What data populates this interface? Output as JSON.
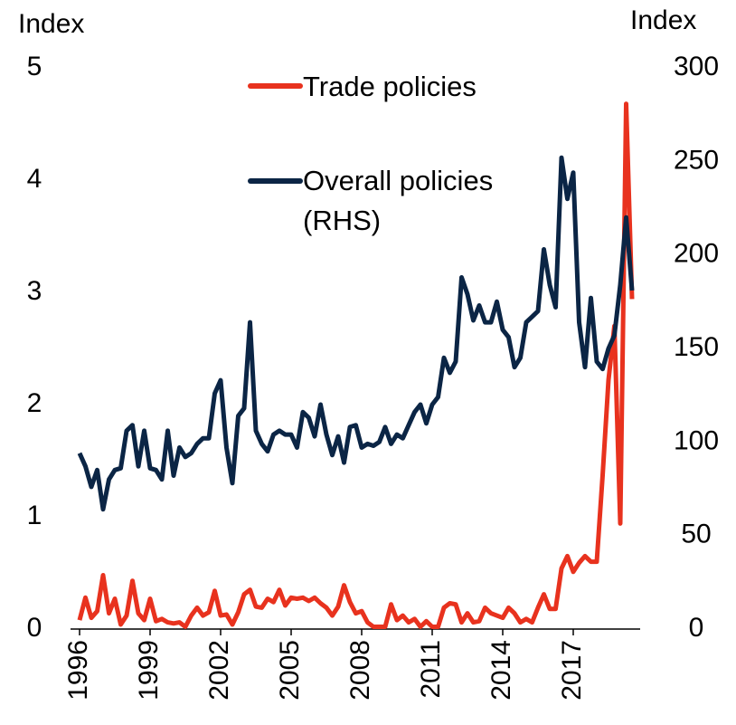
{
  "chart_data": {
    "type": "line",
    "y_label": "Index",
    "y2_label": "Index",
    "x": [
      1996,
      1996.25,
      1996.5,
      1996.75,
      1997,
      1997.25,
      1997.5,
      1997.75,
      1998,
      1998.25,
      1998.5,
      1998.75,
      1999,
      1999.25,
      1999.5,
      1999.75,
      2000,
      2000.25,
      2000.5,
      2000.75,
      2001,
      2001.25,
      2001.5,
      2001.75,
      2002,
      2002.25,
      2002.5,
      2002.75,
      2003,
      2003.25,
      2003.5,
      2003.75,
      2004,
      2004.25,
      2004.5,
      2004.75,
      2005,
      2005.25,
      2005.5,
      2005.75,
      2006,
      2006.25,
      2006.5,
      2006.75,
      2007,
      2007.25,
      2007.5,
      2007.75,
      2008,
      2008.25,
      2008.5,
      2008.75,
      2009,
      2009.25,
      2009.5,
      2009.75,
      2010,
      2010.25,
      2010.5,
      2010.75,
      2011,
      2011.25,
      2011.5,
      2011.75,
      2012,
      2012.25,
      2012.5,
      2012.75,
      2013,
      2013.25,
      2013.5,
      2013.75,
      2014,
      2014.25,
      2014.5,
      2014.75,
      2015,
      2015.25,
      2015.5,
      2015.75,
      2016,
      2016.25,
      2016.5,
      2016.75,
      2017,
      2017.25,
      2017.5,
      2017.75,
      2018,
      2018.25,
      2018.5,
      2018.75,
      2019,
      2019.25,
      2019.5
    ],
    "series": [
      {
        "name": "Trade policies",
        "color": "#e8321e",
        "axis": "y",
        "values": [
          0.08,
          0.28,
          0.1,
          0.16,
          0.48,
          0.14,
          0.27,
          0.04,
          0.12,
          0.43,
          0.14,
          0.08,
          0.27,
          0.07,
          0.09,
          0.06,
          0.05,
          0.06,
          0.02,
          0.12,
          0.19,
          0.12,
          0.15,
          0.34,
          0.12,
          0.13,
          0.04,
          0.15,
          0.31,
          0.35,
          0.2,
          0.19,
          0.27,
          0.24,
          0.35,
          0.21,
          0.28,
          0.27,
          0.28,
          0.25,
          0.28,
          0.23,
          0.19,
          0.12,
          0.2,
          0.39,
          0.24,
          0.14,
          0.16,
          0.06,
          0.02,
          0.02,
          0.02,
          0.22,
          0.08,
          0.12,
          0.06,
          0.09,
          0.02,
          0.07,
          0.02,
          0.02,
          0.19,
          0.23,
          0.22,
          0.06,
          0.14,
          0.06,
          0.07,
          0.19,
          0.14,
          0.12,
          0.1,
          0.19,
          0.14,
          0.06,
          0.09,
          0.06,
          0.19,
          0.31,
          0.18,
          0.18,
          0.54,
          0.65,
          0.51,
          0.59,
          0.65,
          0.6,
          0.6,
          1.37,
          2.22,
          2.7,
          0.94,
          4.68,
          2.94
        ]
      },
      {
        "name": "Overall policies (RHS)",
        "color": "#0b2545",
        "axis": "y2",
        "values": [
          94,
          87,
          76,
          85,
          64,
          80,
          85,
          86,
          106,
          109,
          87,
          106,
          86,
          85,
          80,
          106,
          82,
          97,
          92,
          94,
          99,
          102,
          102,
          126,
          133,
          97,
          78,
          114,
          118,
          164,
          106,
          99,
          95,
          104,
          106,
          104,
          104,
          97,
          116,
          113,
          103,
          120,
          104,
          93,
          103,
          89,
          108,
          109,
          97,
          99,
          98,
          100,
          108,
          99,
          104,
          102,
          109,
          116,
          120,
          110,
          120,
          124,
          145,
          137,
          143,
          188,
          179,
          165,
          173,
          164,
          164,
          175,
          160,
          156,
          140,
          145,
          164,
          167,
          170,
          203,
          184,
          172,
          252,
          230,
          244,
          164,
          140,
          177,
          143,
          139,
          150,
          157,
          184,
          220,
          181
        ]
      }
    ],
    "xlim": [
      1996,
      2019.5
    ],
    "xticks": [
      1996,
      1999,
      2002,
      2005,
      2008,
      2011,
      2014,
      2017
    ],
    "ylim": [
      0,
      5
    ],
    "yticks": [
      0,
      1,
      2,
      3,
      4,
      5
    ],
    "y2lim": [
      0,
      300
    ],
    "y2ticks": [
      0,
      50,
      100,
      150,
      200,
      250,
      300
    ],
    "grid": false
  }
}
